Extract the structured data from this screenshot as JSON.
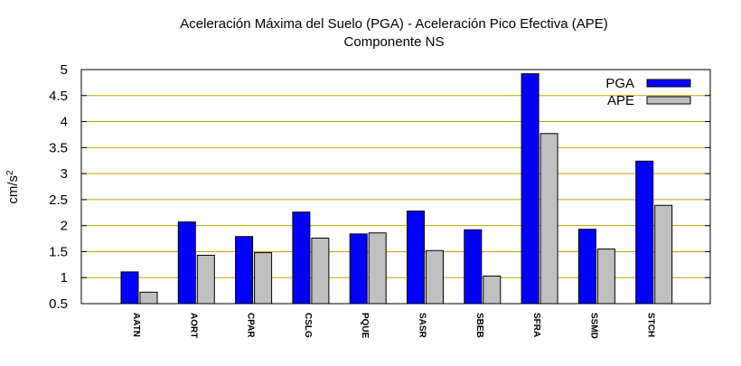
{
  "chart_data": {
    "type": "bar",
    "title": "Aceleración Máxima del Suelo (PGA) -  Aceleración Pico Efectiva (APE)",
    "subtitle": "Componente NS",
    "ylabel": "cm/s",
    "ylabel_sup": "2",
    "xlabel": "",
    "ylim": [
      0.5,
      5
    ],
    "yticks": [
      0.5,
      1,
      1.5,
      2,
      2.5,
      3,
      3.5,
      4,
      4.5,
      5
    ],
    "ytick_labels": [
      "0.5",
      "1",
      "1.5",
      "2",
      "2.5",
      "3",
      "3.5",
      "4",
      "4.5",
      "5"
    ],
    "grid": true,
    "legend_position": "top-right",
    "categories": [
      "AATN",
      "AORT",
      "CPAR",
      "CSLG",
      "PQUE",
      "SASR",
      "SBEB",
      "SFRA",
      "SSMD",
      "STCH"
    ],
    "series": [
      {
        "name": "PGA",
        "color": "#0000ff",
        "values": [
          1.11,
          2.07,
          1.79,
          2.26,
          1.84,
          2.28,
          1.92,
          4.92,
          1.93,
          3.24
        ]
      },
      {
        "name": "APE",
        "color": "#c0c0c0",
        "values": [
          0.72,
          1.43,
          1.48,
          1.76,
          1.86,
          1.52,
          1.03,
          3.77,
          1.55,
          2.39
        ]
      }
    ],
    "grid_color": "#c8a000"
  }
}
